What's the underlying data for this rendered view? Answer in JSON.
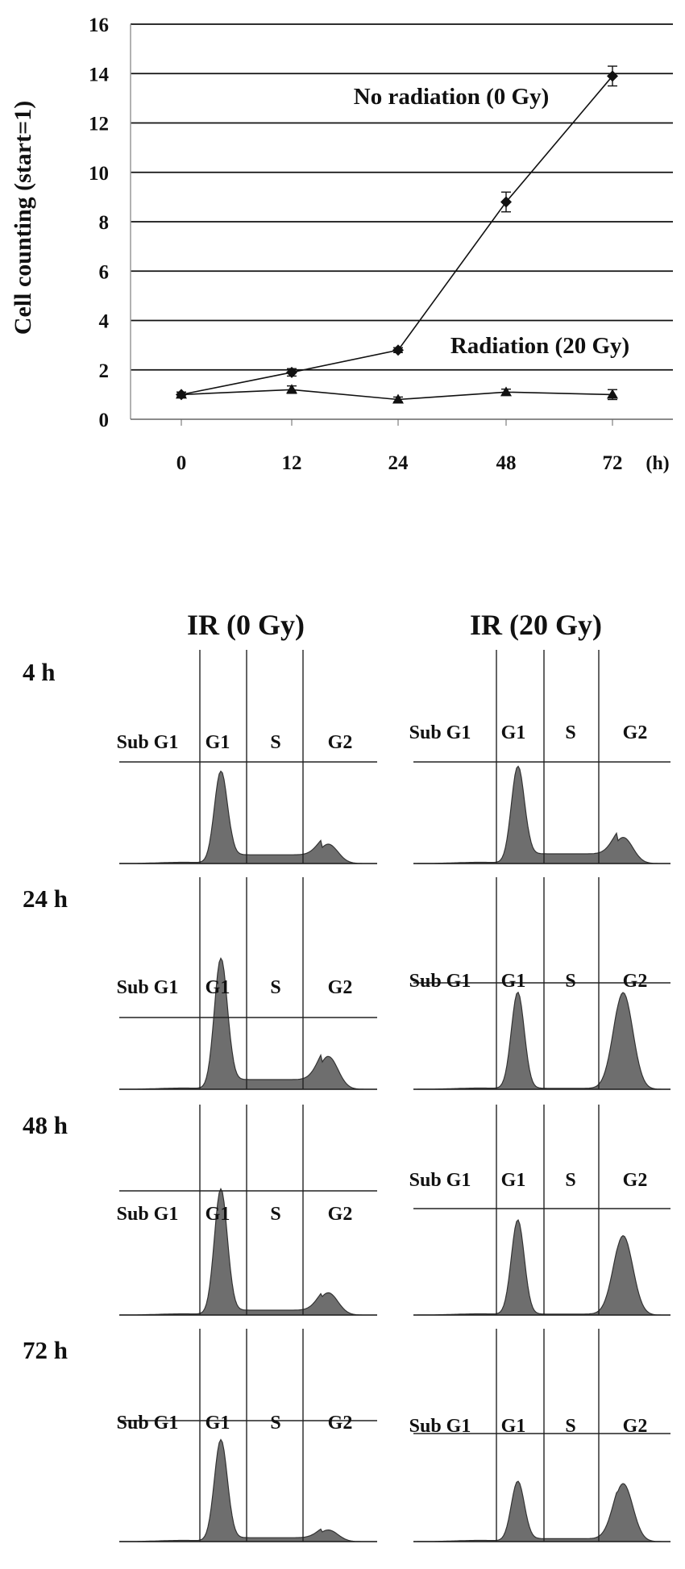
{
  "chart_data": [
    {
      "type": "line",
      "title": "",
      "xlabel": "",
      "ylabel": "Cell counting (start=1)",
      "x_unit": "(h)",
      "categories": [
        "0",
        "12",
        "24",
        "48",
        "72"
      ],
      "ylim": [
        0,
        16
      ],
      "yticks": [
        "0",
        "2",
        "4",
        "6",
        "8",
        "10",
        "12",
        "14",
        "16"
      ],
      "grid": true,
      "series": [
        {
          "name": "No radiation (0 Gy)",
          "marker": "diamond",
          "values": [
            1.0,
            1.9,
            2.8,
            8.8,
            13.9
          ],
          "errors": [
            0.1,
            0.15,
            0.1,
            0.4,
            0.4
          ]
        },
        {
          "name": "Radiation (20 Gy)",
          "marker": "triangle",
          "values": [
            1.0,
            1.2,
            0.8,
            1.1,
            1.0
          ],
          "errors": [
            0.1,
            0.15,
            0.1,
            0.12,
            0.2
          ]
        }
      ]
    },
    {
      "type": "area",
      "title": "",
      "columns": [
        "IR (0 Gy)",
        "IR (20 Gy)"
      ],
      "rows": [
        "4 h",
        "24 h",
        "48 h",
        "72 h"
      ],
      "gate_labels": [
        "Sub G1",
        "G1",
        "S",
        "G2"
      ],
      "fill_color": "#6e6e6e",
      "histograms": [
        {
          "time": "4 h",
          "dose": "0 Gy",
          "g1_height": 0.95,
          "s_level": 0.09,
          "g2_height": 0.2
        },
        {
          "time": "4 h",
          "dose": "20 Gy",
          "g1_height": 1.0,
          "s_level": 0.1,
          "g2_height": 0.27
        },
        {
          "time": "24 h",
          "dose": "0 Gy",
          "g1_height": 1.35,
          "s_level": 0.1,
          "g2_height": 0.34
        },
        {
          "time": "24 h",
          "dose": "20 Gy",
          "g1_height": 1.0,
          "s_level": 0.01,
          "g2_height": 1.0
        },
        {
          "time": "48 h",
          "dose": "0 Gy",
          "g1_height": 1.3,
          "s_level": 0.05,
          "g2_height": 0.23
        },
        {
          "time": "48 h",
          "dose": "20 Gy",
          "g1_height": 0.98,
          "s_level": 0.01,
          "g2_height": 0.82
        },
        {
          "time": "72 h",
          "dose": "0 Gy",
          "g1_height": 1.05,
          "s_level": 0.04,
          "g2_height": 0.12
        },
        {
          "time": "72 h",
          "dose": "20 Gy",
          "g1_height": 0.62,
          "s_level": 0.03,
          "g2_height": 0.6
        }
      ]
    }
  ]
}
